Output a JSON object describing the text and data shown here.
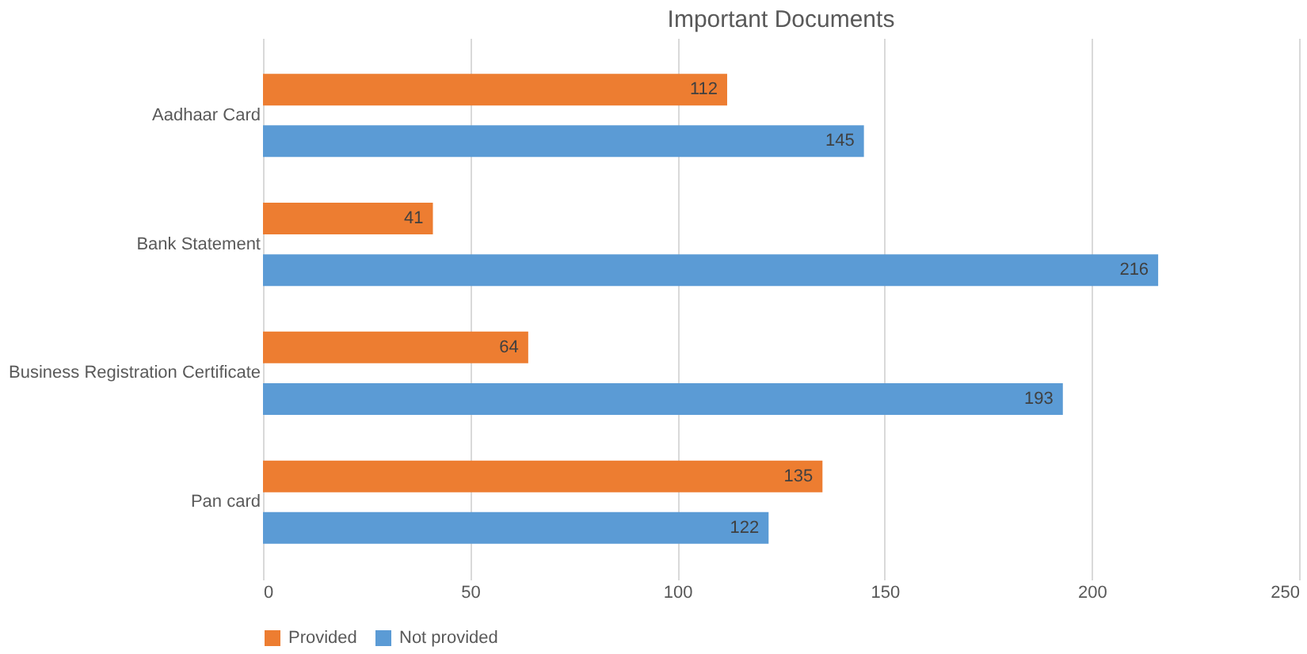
{
  "chart_data": {
    "type": "bar",
    "title": "Important Documents",
    "orientation": "horizontal",
    "categories": [
      "Aadhaar Card",
      "Bank Statement",
      "Business Registration Certificate",
      "Pan card"
    ],
    "series": [
      {
        "name": "Provided",
        "color": "#ed7d31",
        "values": [
          112,
          41,
          64,
          135
        ]
      },
      {
        "name": "Not provided",
        "color": "#5b9bd5",
        "values": [
          145,
          216,
          193,
          122
        ]
      }
    ],
    "xlim": [
      0,
      250
    ],
    "xticks": [
      0,
      50,
      100,
      150,
      200,
      250
    ],
    "grid": "x",
    "legend": "bottom",
    "data_labels": true
  }
}
